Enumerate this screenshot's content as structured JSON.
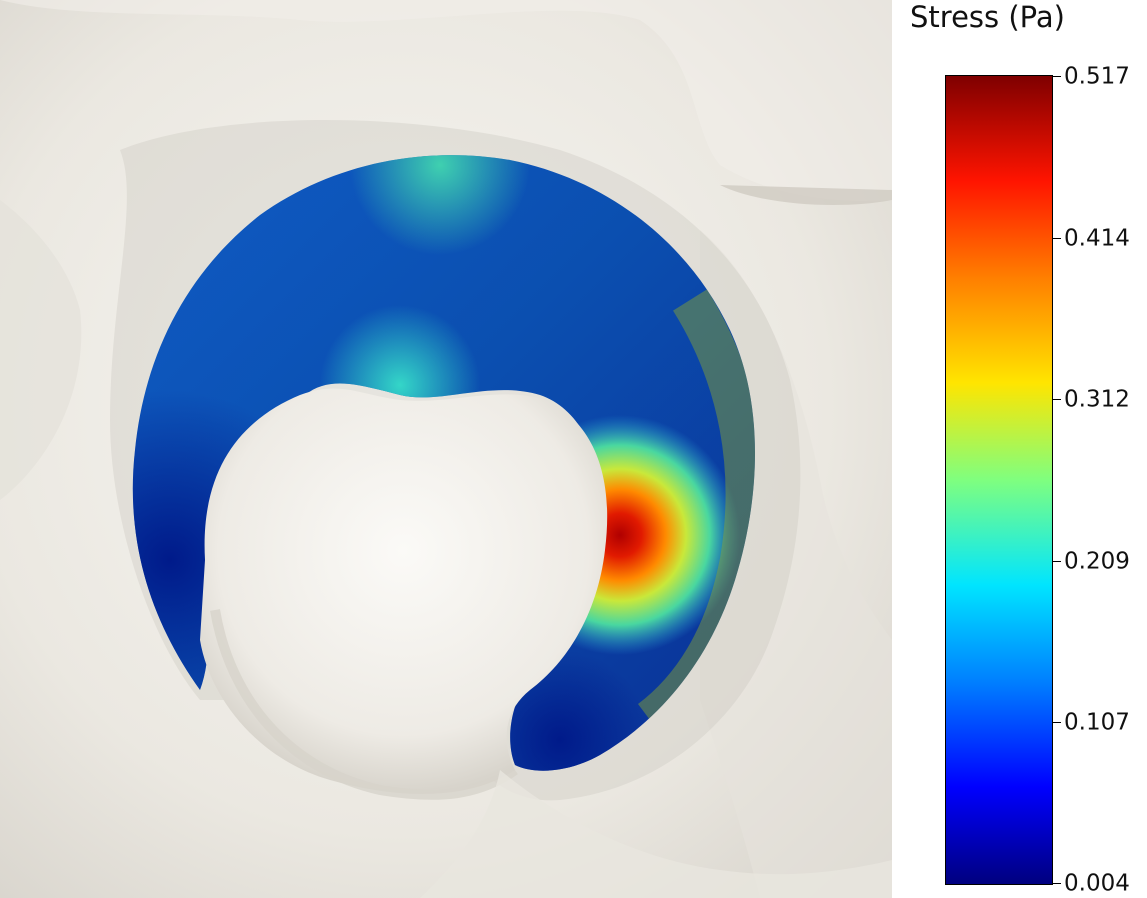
{
  "colorbar": {
    "title": "Stress (Pa)",
    "ticks": [
      "0.517",
      "0.414",
      "0.312",
      "0.209",
      "0.107",
      "0.004"
    ],
    "min": 0.004,
    "max": 0.517,
    "colormap": "jet"
  },
  "colors": {
    "bone": "#ece9e2",
    "bone_shadow": "#bdb9b0",
    "background": "#ffffff",
    "stress_low": "#00107f",
    "stress_high": "#b00000"
  }
}
